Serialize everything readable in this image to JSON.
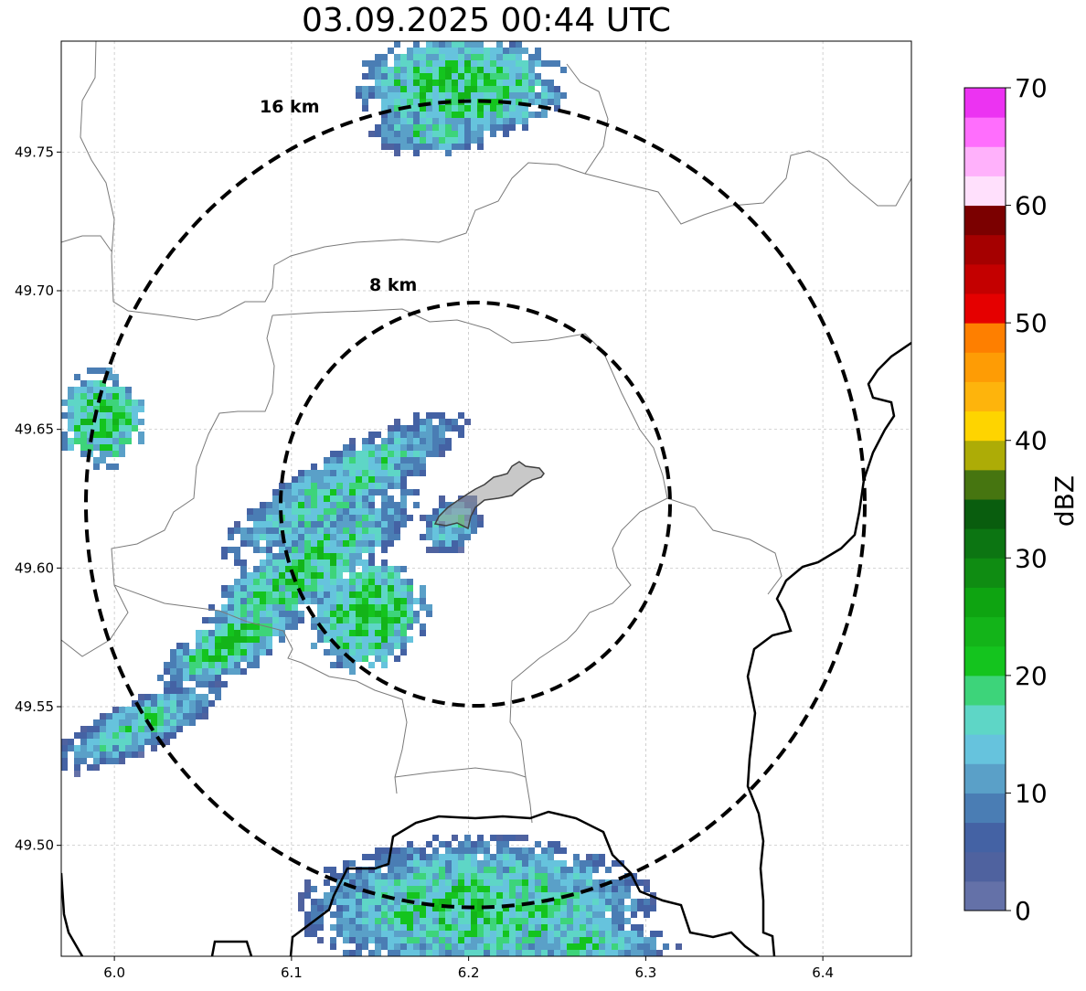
{
  "title": "03.09.2025 00:44 UTC",
  "map": {
    "lon_range": [
      5.97,
      6.45
    ],
    "lat_range": [
      49.46,
      49.79
    ],
    "x_ticks": [
      "6.0",
      "6.1",
      "6.2",
      "6.3",
      "6.4"
    ],
    "x_tick_values": [
      6.0,
      6.1,
      6.2,
      6.3,
      6.4
    ],
    "y_ticks": [
      "49.50",
      "49.55",
      "49.60",
      "49.65",
      "49.70",
      "49.75"
    ],
    "y_tick_values": [
      49.5,
      49.55,
      49.6,
      49.65,
      49.7,
      49.75
    ],
    "grid": true,
    "rings": [
      {
        "label": "8 km",
        "radius_km": 8
      },
      {
        "label": "16 km",
        "radius_km": 16
      }
    ],
    "ring_center": {
      "lon": 6.205,
      "lat": 49.623
    },
    "city_outline_color": "#808080",
    "echo_colors": [
      "#6471a8",
      "#4f629f",
      "#4462a4",
      "#4a7db4",
      "#5aa0c8",
      "#66c3dd",
      "#5ed6c6",
      "#3dd47a",
      "#14c41e",
      "#13b419"
    ]
  },
  "colorbar": {
    "label": "dBZ",
    "ticks": [
      "0",
      "10",
      "20",
      "30",
      "40",
      "50",
      "60",
      "70"
    ],
    "tick_values": [
      0,
      10,
      20,
      30,
      40,
      50,
      60,
      70
    ],
    "range": [
      0,
      70
    ],
    "colors": [
      "#6471a8",
      "#4f629f",
      "#4462a4",
      "#4a7db4",
      "#5aa0c8",
      "#66c3dd",
      "#5ed6c6",
      "#3dd47a",
      "#14c41e",
      "#13b419",
      "#0ea411",
      "#0f8c12",
      "#0c7512",
      "#095d0e",
      "#467510",
      "#adac06",
      "#fed400",
      "#feb40c",
      "#fe9c05",
      "#fe7f00",
      "#e50000",
      "#c40000",
      "#a50000",
      "#7b0000",
      "#ffe0fc",
      "#ffb1fb",
      "#ff6efd",
      "#ec33f2"
    ]
  }
}
